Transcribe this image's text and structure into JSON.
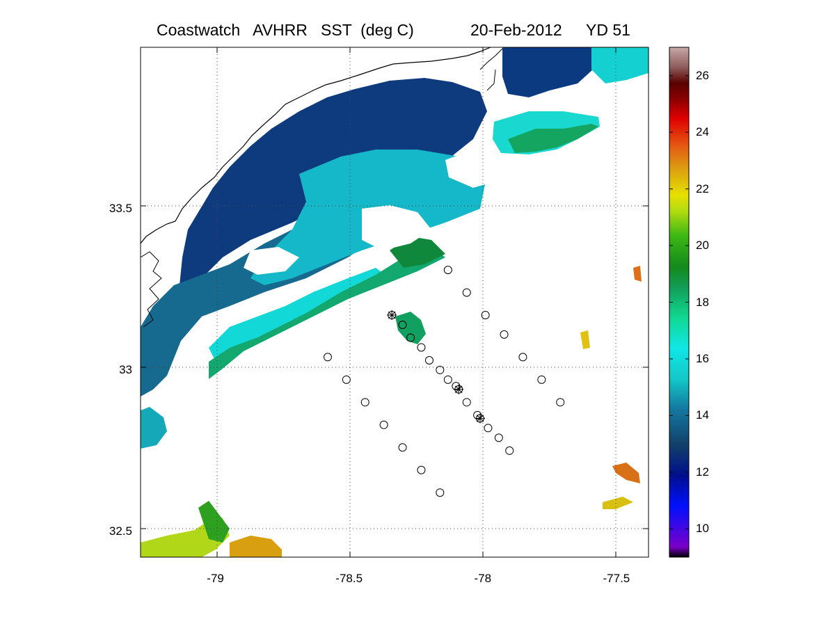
{
  "header": {
    "title": "Coastwatch   AVHRR   SST  (deg C)",
    "date": "20-Feb-2012",
    "yearday": "YD 51"
  },
  "map": {
    "lon_range": [
      -79.28,
      -77.38
    ],
    "lat_range": [
      32.42,
      34.0
    ],
    "grid": true,
    "x_tick_labels": [
      "-79",
      "-78.5",
      "-78",
      "-77.5"
    ],
    "x_tick_values": [
      -79,
      -78.5,
      -78,
      -77.5
    ],
    "y_tick_labels": [
      "33.5",
      "33",
      "32.5"
    ],
    "y_tick_values": [
      33.5,
      33.0,
      32.5
    ]
  },
  "colorbar": {
    "range": [
      9,
      27
    ],
    "tick_labels": [
      "10",
      "12",
      "14",
      "16",
      "18",
      "20",
      "22",
      "24",
      "26"
    ],
    "tick_values": [
      10,
      12,
      14,
      16,
      18,
      20,
      22,
      24,
      26
    ]
  },
  "stations": {
    "line_west": [
      [
        -78.58,
        33.04
      ],
      [
        -78.51,
        32.97
      ],
      [
        -78.44,
        32.9
      ],
      [
        -78.37,
        32.83
      ],
      [
        -78.3,
        32.76
      ],
      [
        -78.23,
        32.69
      ],
      [
        -78.16,
        32.62
      ]
    ],
    "line_middle": [
      [
        -78.34,
        33.17
      ],
      [
        -78.3,
        33.14
      ],
      [
        -78.27,
        33.1
      ],
      [
        -78.23,
        33.07
      ],
      [
        -78.2,
        33.03
      ],
      [
        -78.16,
        33.0
      ],
      [
        -78.13,
        32.97
      ],
      [
        -78.1,
        32.95
      ],
      [
        -78.09,
        32.94
      ],
      [
        -78.06,
        32.9
      ],
      [
        -78.02,
        32.86
      ],
      [
        -78.01,
        32.85
      ],
      [
        -77.98,
        32.82
      ],
      [
        -77.94,
        32.79
      ],
      [
        -77.9,
        32.75
      ]
    ],
    "line_east": [
      [
        -78.13,
        33.31
      ],
      [
        -78.06,
        33.24
      ],
      [
        -77.99,
        33.17
      ],
      [
        -77.92,
        33.11
      ],
      [
        -77.85,
        33.04
      ],
      [
        -77.78,
        32.97
      ],
      [
        -77.71,
        32.9
      ]
    ],
    "starred": [
      [
        -78.34,
        33.17
      ],
      [
        -78.09,
        32.94
      ],
      [
        -78.01,
        32.85
      ]
    ]
  },
  "colors": {
    "coastline": "#000000",
    "grid": "#555555",
    "station_marker": "#000000"
  }
}
